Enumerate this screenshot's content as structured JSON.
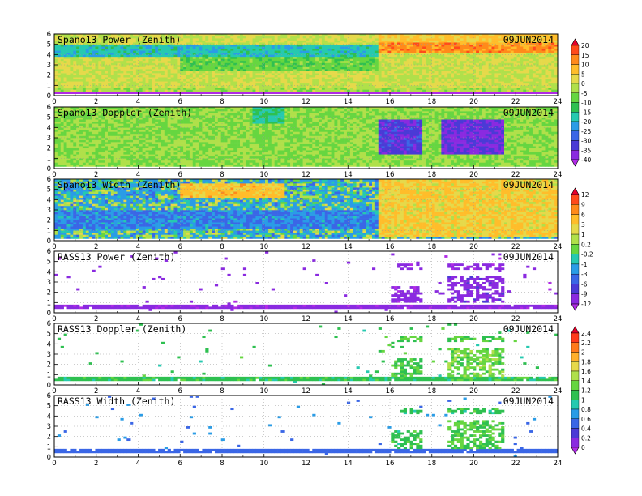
{
  "figure": {
    "date_label": "09JUN2014"
  },
  "chart_data": [
    {
      "type": "heatmap",
      "title": "Spano13 Power (Zenith)",
      "date": "09JUN2014",
      "x_ticks": [
        0,
        2,
        4,
        6,
        8,
        10,
        12,
        14,
        16,
        18,
        20,
        22,
        24
      ],
      "y_ticks": [
        0,
        1,
        2,
        3,
        4,
        5,
        6
      ],
      "xlim": [
        0,
        24
      ],
      "ylim": [
        0,
        6
      ],
      "colorbar_id": "cb1",
      "description_of_field": {
        "base_level": 0,
        "features": [
          {
            "x_range": [
              15.5,
              24
            ],
            "y_range": [
              4.3,
              5.3
            ],
            "value": 12
          },
          {
            "x_range": [
              15.5,
              24
            ],
            "y_range": [
              5.3,
              6
            ],
            "value": 6
          },
          {
            "x_range": [
              0,
              15.5
            ],
            "y_range": [
              3.8,
              5
            ],
            "value": -18
          },
          {
            "x_range": [
              6,
              15.5
            ],
            "y_range": [
              2.5,
              3.8
            ],
            "value": -8
          },
          {
            "x_range": [
              0,
              24
            ],
            "y_range": [
              0,
              0.8
            ],
            "value": -3
          }
        ]
      }
    },
    {
      "type": "heatmap",
      "title": "Spano13 Doppler (Zenith)",
      "date": "09JUN2014",
      "x_ticks": [
        0,
        2,
        4,
        6,
        8,
        10,
        12,
        14,
        16,
        18,
        20,
        22,
        24
      ],
      "y_ticks": [
        0,
        1,
        2,
        3,
        4,
        5,
        6
      ],
      "xlim": [
        0,
        24
      ],
      "ylim": [
        0,
        6
      ],
      "colorbar_id": "cb1",
      "description_of_field": {
        "base_level": -5,
        "features": [
          {
            "x_range": [
              15.5,
              17.5
            ],
            "y_range": [
              1.5,
              4.8
            ],
            "value": -33
          },
          {
            "x_range": [
              18.5,
              21.5
            ],
            "y_range": [
              1.5,
              4.8
            ],
            "value": -35
          },
          {
            "x_range": [
              9.5,
              11
            ],
            "y_range": [
              4.5,
              6
            ],
            "value": -15
          }
        ]
      }
    },
    {
      "type": "heatmap",
      "title": "Spano13 Width (Zenith)",
      "date": "09JUN2014",
      "x_ticks": [
        0,
        2,
        4,
        6,
        8,
        10,
        12,
        14,
        16,
        18,
        20,
        22,
        24
      ],
      "y_ticks": [
        0,
        1,
        2,
        3,
        4,
        5,
        6
      ],
      "xlim": [
        0,
        24
      ],
      "ylim": [
        0,
        6
      ],
      "colorbar_id": "cb2",
      "description_of_field": {
        "base_level": -1,
        "features": [
          {
            "x_range": [
              15.5,
              24
            ],
            "y_range": [
              0.5,
              6
            ],
            "value": 3
          },
          {
            "x_range": [
              6,
              11
            ],
            "y_range": [
              4.2,
              5.5
            ],
            "value": 4
          },
          {
            "x_range": [
              0,
              15.5
            ],
            "y_range": [
              1.2,
              3
            ],
            "value": -3
          }
        ]
      }
    },
    {
      "type": "heatmap",
      "title": "RASS13 Power (Zenith)",
      "date": "09JUN2014",
      "x_ticks": [
        0,
        2,
        4,
        6,
        8,
        10,
        12,
        14,
        16,
        18,
        20,
        22,
        24
      ],
      "y_ticks": [
        0,
        1,
        2,
        3,
        4,
        5,
        6
      ],
      "xlim": [
        0,
        24
      ],
      "ylim": [
        0,
        6
      ],
      "colorbar_id": "cb2",
      "description_of_field": {
        "base_level": -11,
        "features": [
          {
            "x_range": [
              0,
              24
            ],
            "y_range": [
              0.5,
              0.8
            ],
            "value": -11
          },
          {
            "x_range": [
              16,
              17.5
            ],
            "y_range": [
              1,
              2.5
            ],
            "value": -11
          },
          {
            "x_range": [
              18.7,
              21.5
            ],
            "y_range": [
              1,
              3.5
            ],
            "value": -10
          },
          {
            "x_range": [
              16.3,
              17.5
            ],
            "y_range": [
              4.3,
              4.8
            ],
            "value": -11
          },
          {
            "x_range": [
              18.8,
              21.5
            ],
            "y_range": [
              4.3,
              4.8
            ],
            "value": -11
          }
        ]
      }
    },
    {
      "type": "heatmap",
      "title": "RASS13 Doppler (Zenith)",
      "date": "09JUN2014",
      "x_ticks": [
        0,
        2,
        4,
        6,
        8,
        10,
        12,
        14,
        16,
        18,
        20,
        22,
        24
      ],
      "y_ticks": [
        0,
        1,
        2,
        3,
        4,
        5,
        6
      ],
      "xlim": [
        0,
        24
      ],
      "ylim": [
        0,
        6
      ],
      "colorbar_id": "cb3",
      "description_of_field": {
        "base_level": 1.1,
        "features": [
          {
            "x_range": [
              0,
              24
            ],
            "y_range": [
              0.5,
              0.8
            ],
            "value": 1.1
          },
          {
            "x_range": [
              16,
              17.5
            ],
            "y_range": [
              0.8,
              2.5
            ],
            "value": 1.2
          },
          {
            "x_range": [
              18.7,
              21.5
            ],
            "y_range": [
              0.8,
              3.5
            ],
            "value": 1.3
          },
          {
            "x_range": [
              16.3,
              17.5
            ],
            "y_range": [
              4.3,
              4.8
            ],
            "value": 1.2
          },
          {
            "x_range": [
              18.8,
              21.5
            ],
            "y_range": [
              4.3,
              4.8
            ],
            "value": 1.2
          }
        ]
      }
    },
    {
      "type": "heatmap",
      "title": "RASS13 Width (Zenith)",
      "date": "09JUN2014",
      "x_ticks": [
        0,
        2,
        4,
        6,
        8,
        10,
        12,
        14,
        16,
        18,
        20,
        22,
        24
      ],
      "y_ticks": [
        0,
        1,
        2,
        3,
        4,
        5,
        6
      ],
      "xlim": [
        0,
        24
      ],
      "ylim": [
        0,
        6
      ],
      "colorbar_id": "cb3",
      "description_of_field": {
        "base_level": 0.6,
        "features": [
          {
            "x_range": [
              0,
              24
            ],
            "y_range": [
              0.5,
              0.8
            ],
            "value": 0.5
          },
          {
            "x_range": [
              16,
              17.5
            ],
            "y_range": [
              0.8,
              2.5
            ],
            "value": 1.1
          },
          {
            "x_range": [
              18.7,
              21.5
            ],
            "y_range": [
              0.8,
              3.5
            ],
            "value": 1.2
          },
          {
            "x_range": [
              16.3,
              17.5
            ],
            "y_range": [
              4.3,
              4.8
            ],
            "value": 1.1
          },
          {
            "x_range": [
              18.8,
              21.5
            ],
            "y_range": [
              4.3,
              4.8
            ],
            "value": 1.1
          }
        ]
      }
    }
  ],
  "colorbars": {
    "cb1": {
      "labels": [
        "20",
        "15",
        "10",
        "5",
        "0",
        "-5",
        "-10",
        "-15",
        "-20",
        "-25",
        "-30",
        "-35",
        "-40"
      ],
      "levels": [
        20,
        15,
        10,
        5,
        0,
        -5,
        -10,
        -15,
        -20,
        -25,
        -30,
        -35,
        -40
      ],
      "colors": [
        "#e8002a",
        "#ff4a1a",
        "#ff8a1a",
        "#ffbd2a",
        "#e6d94a",
        "#b0e04a",
        "#66d640",
        "#2ec050",
        "#26c9b0",
        "#2a9ce6",
        "#3a66e6",
        "#4a3ad6",
        "#8a2ae0",
        "#b02ae6"
      ]
    },
    "cb2": {
      "labels": [
        "12",
        "9",
        "6",
        "3",
        "1",
        "0.2",
        "-0.2",
        "-1",
        "-3",
        "-6",
        "-9",
        "-12"
      ],
      "levels": [
        12,
        9,
        6,
        3,
        1,
        0.2,
        -0.2,
        -1,
        -3,
        -6,
        -9,
        -12
      ],
      "colors": [
        "#e8002a",
        "#ff4a1a",
        "#ff8a1a",
        "#ffbd2a",
        "#e6d94a",
        "#b0e04a",
        "#66d640",
        "#26c9b0",
        "#2a9ce6",
        "#3a66e6",
        "#4a3ad6",
        "#8a2ae0",
        "#b02ae6"
      ]
    },
    "cb3": {
      "labels": [
        "2.4",
        "2.2",
        "2",
        "1.8",
        "1.6",
        "1.4",
        "1.2",
        "1",
        "0.8",
        "0.6",
        "0.4",
        "0.2",
        "0"
      ],
      "levels": [
        2.4,
        2.2,
        2,
        1.8,
        1.6,
        1.4,
        1.2,
        1,
        0.8,
        0.6,
        0.4,
        0.2,
        0
      ],
      "colors": [
        "#e8002a",
        "#ff3a1a",
        "#ff7a1a",
        "#ffb02a",
        "#e6d94a",
        "#b0e04a",
        "#66d640",
        "#2ec050",
        "#26c9b0",
        "#2a9ce6",
        "#3a66e6",
        "#4a3ad6",
        "#8a2ae0",
        "#b02ae6"
      ]
    }
  }
}
